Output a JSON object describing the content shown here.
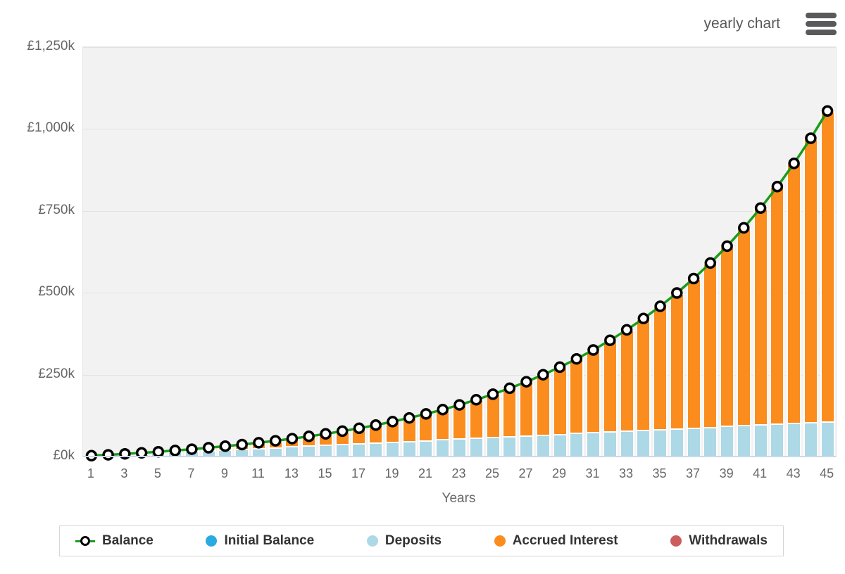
{
  "header": {
    "title": "yearly chart",
    "menu_icon": "hamburger-icon"
  },
  "chart_data": {
    "type": "bar",
    "subtype": "stacked-columns-with-line",
    "title": "yearly chart",
    "xlabel": "Years",
    "ylabel": "",
    "x": [
      1,
      2,
      3,
      4,
      5,
      6,
      7,
      8,
      9,
      10,
      11,
      12,
      13,
      14,
      15,
      16,
      17,
      18,
      19,
      20,
      21,
      22,
      23,
      24,
      25,
      26,
      27,
      28,
      29,
      30,
      31,
      32,
      33,
      34,
      35,
      36,
      37,
      38,
      39,
      40,
      41,
      42,
      43,
      44,
      45
    ],
    "xticks": [
      1,
      3,
      5,
      7,
      9,
      11,
      13,
      15,
      17,
      19,
      21,
      23,
      25,
      27,
      29,
      31,
      33,
      35,
      37,
      39,
      41,
      43,
      45
    ],
    "ytick_values": [
      0,
      250000,
      500000,
      750000,
      1000000,
      1250000
    ],
    "ytick_labels": [
      "£0k",
      "£250k",
      "£500k",
      "£750k",
      "£1,000k",
      "£1,250k"
    ],
    "ylim": [
      0,
      1250000
    ],
    "grid": true,
    "legend_position": "bottom",
    "colors": {
      "balance_line": "#1a9c1a",
      "balance_marker_fill": "#ffffff",
      "balance_marker_ring": "#000000",
      "initial_balance": "#29abe2",
      "deposits": "#add8e6",
      "accrued_interest": "#fb8c1e",
      "withdrawals": "#cd5c5c",
      "plot_background": "#f2f2f2",
      "axis_line": "#ccd6eb"
    },
    "bar_series": [
      {
        "name": "Deposits",
        "color": "#add8e6",
        "values": [
          2400,
          4800,
          7200,
          9600,
          12000,
          14400,
          16800,
          19200,
          21600,
          24000,
          26400,
          28800,
          31200,
          33600,
          36000,
          38400,
          40800,
          43200,
          45600,
          48000,
          50400,
          52800,
          55200,
          57600,
          60000,
          62400,
          64800,
          67200,
          69600,
          72000,
          74400,
          76800,
          79200,
          81600,
          84000,
          86400,
          88800,
          91200,
          93600,
          96000,
          98400,
          100800,
          103200,
          105600,
          108000
        ]
      },
      {
        "name": "Accrued Interest",
        "color": "#fb8c1e",
        "values": [
          90,
          387,
          907,
          1670,
          2696,
          4005,
          5623,
          7574,
          9886,
          12590,
          15716,
          19302,
          23384,
          28005,
          33208,
          39043,
          45561,
          52819,
          60878,
          69806,
          79673,
          90559,
          102548,
          115732,
          130208,
          146085,
          163479,
          182517,
          203333,
          226077,
          250907,
          277997,
          307535,
          339724,
          374785,
          412954,
          454490,
          499672,
          548806,
          602215,
          660256,
          723315,
          791807,
          866182,
          946930
        ]
      }
    ],
    "line_series": {
      "name": "Balance",
      "color": "#1a9c1a",
      "marker": "white-circle-black-ring",
      "values": [
        2490,
        5187,
        8107,
        11270,
        14696,
        18405,
        22423,
        26774,
        31486,
        36590,
        42116,
        48102,
        54584,
        61605,
        69208,
        77443,
        86361,
        96019,
        106478,
        117806,
        130073,
        143359,
        157748,
        173332,
        190208,
        208485,
        228279,
        249717,
        272933,
        298077,
        325307,
        354797,
        386735,
        421324,
        458785,
        499354,
        543290,
        590872,
        642406,
        698215,
        758656,
        824115,
        895007,
        971782,
        1054930
      ]
    },
    "legend": [
      {
        "label": "Balance",
        "swatch": "line-marker",
        "color": "#000000",
        "line_color": "#1a9c1a"
      },
      {
        "label": "Initial Balance",
        "swatch": "circle",
        "color": "#29abe2"
      },
      {
        "label": "Deposits",
        "swatch": "circle",
        "color": "#add8e6"
      },
      {
        "label": "Accrued Interest",
        "swatch": "circle",
        "color": "#fb8c1e"
      },
      {
        "label": "Withdrawals",
        "swatch": "circle",
        "color": "#cd5c5c"
      }
    ]
  }
}
